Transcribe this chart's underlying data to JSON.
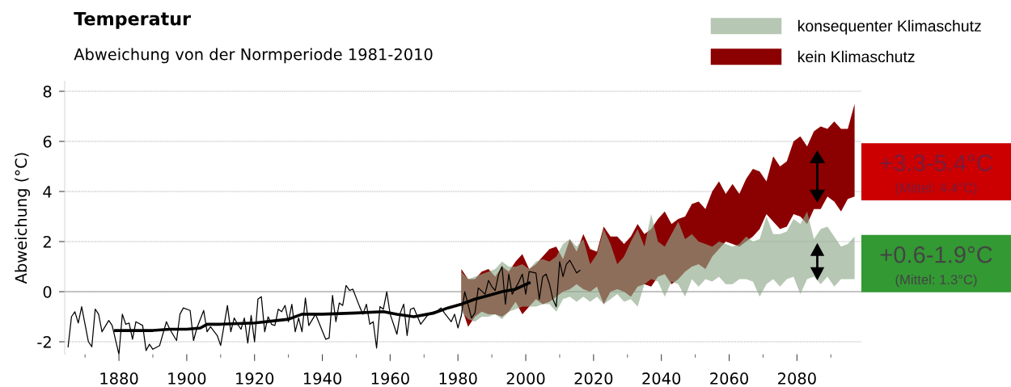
{
  "chart_data": {
    "type": "line",
    "title": "Temperatur",
    "subtitle": "Abweichung von der Normperiode 1981-2010",
    "ylabel": "Abweichung (°C)",
    "xlim": [
      1864,
      2099
    ],
    "ylim": [
      -2.5,
      8.4
    ],
    "xticks": [
      {
        "value": 1870,
        "label": null
      },
      1880,
      {
        "value": 1890,
        "label": null
      },
      1900,
      {
        "value": 1910,
        "label": null
      },
      1920,
      {
        "value": 1930,
        "label": null
      },
      1940,
      {
        "value": 1950,
        "label": null
      },
      1960,
      {
        "value": 1970,
        "label": null
      },
      1980,
      {
        "value": 1990,
        "label": null
      },
      2000,
      {
        "value": 2010,
        "label": null
      },
      2020,
      {
        "value": 2030,
        "label": null
      },
      2040,
      {
        "value": 2050,
        "label": null
      },
      2060,
      {
        "value": 2070,
        "label": null
      },
      2080,
      {
        "value": 2090,
        "label": null
      }
    ],
    "yticks": [
      -2,
      0,
      2,
      4,
      6,
      8
    ],
    "grid": "y",
    "legend": "top right",
    "series": [
      {
        "type": "line",
        "name": "konsequenter Klimaschutz",
        "color": "#8fa98a",
        "x": [
          1981,
          1983,
          1985,
          1987,
          1989,
          1991,
          1993,
          1995,
          1997,
          1999,
          2001,
          2003,
          2005,
          2007,
          2009,
          2011,
          2013,
          2015,
          2017,
          2019,
          2021,
          2023,
          2025,
          2027,
          2029,
          2031,
          2033,
          2035,
          2037,
          2039,
          2041,
          2043,
          2045,
          2047,
          2049,
          2051,
          2053,
          2055,
          2057,
          2059,
          2061,
          2063,
          2065,
          2067,
          2069,
          2071,
          2073,
          2075,
          2077,
          2079,
          2081,
          2083,
          2085,
          2087,
          2089,
          2091,
          2093,
          2095,
          2097
        ],
        "values": [
          null,
          null,
          null,
          null,
          null,
          null,
          null,
          null,
          null,
          null,
          null,
          null,
          null,
          null,
          null,
          null,
          null,
          null,
          null,
          null,
          null,
          null,
          null,
          null,
          null,
          null,
          null,
          null,
          null,
          null,
          null,
          null,
          null,
          null,
          null,
          null,
          null,
          null,
          null,
          null,
          null,
          null,
          null,
          null,
          null,
          null,
          null,
          null,
          null,
          null,
          null,
          null,
          null,
          null,
          null,
          null,
          null,
          null,
          null
        ],
        "upper": [
          0.8,
          0.5,
          0.6,
          0.7,
          0.8,
          0.9,
          1.2,
          1.0,
          1.0,
          1.1,
          0.9,
          1.2,
          1.3,
          1.2,
          1.4,
          1.9,
          2.1,
          1.8,
          2.1,
          1.1,
          1.5,
          2.5,
          1.9,
          1.1,
          1.4,
          2.0,
          2.5,
          1.8,
          3.1,
          2.0,
          1.8,
          2.3,
          2.8,
          2.1,
          2.3,
          2.0,
          1.9,
          1.8,
          2.0,
          1.9,
          1.8,
          1.9,
          2.2,
          2.0,
          2.1,
          3.0,
          2.3,
          2.3,
          2.4,
          2.9,
          2.7,
          3.2,
          2.1,
          2.5,
          2.6,
          2.2,
          1.8,
          1.9,
          2.2
        ],
        "lower": [
          -0.8,
          -1.1,
          -1.2,
          -1.0,
          -1.0,
          -0.9,
          -1.1,
          -0.8,
          -0.7,
          -0.6,
          -0.6,
          -0.6,
          -0.5,
          -0.5,
          -0.8,
          -0.3,
          -0.2,
          -0.4,
          -0.2,
          -0.4,
          -0.2,
          -0.5,
          -0.3,
          -0.1,
          -0.4,
          -0.3,
          -0.6,
          0.3,
          0.5,
          0.4,
          -0.2,
          0.4,
          0.3,
          -0.2,
          0.5,
          0.2,
          0.5,
          0.4,
          0.6,
          0.3,
          0.3,
          0.5,
          0.5,
          0.4,
          -0.2,
          0.3,
          0.5,
          0.2,
          0.5,
          0.6,
          -0.1,
          0.5,
          0.6,
          0.3,
          0.6,
          0.2,
          0.5,
          0.5,
          0.5
        ]
      },
      {
        "type": "line",
        "name": "kein Klimaschutz",
        "color": "#8b0000",
        "x": [
          1981,
          1983,
          1985,
          1987,
          1989,
          1991,
          1993,
          1995,
          1997,
          1999,
          2001,
          2003,
          2005,
          2007,
          2009,
          2011,
          2013,
          2015,
          2017,
          2019,
          2021,
          2023,
          2025,
          2027,
          2029,
          2031,
          2033,
          2035,
          2037,
          2039,
          2041,
          2043,
          2045,
          2047,
          2049,
          2051,
          2053,
          2055,
          2057,
          2059,
          2061,
          2063,
          2065,
          2067,
          2069,
          2071,
          2073,
          2075,
          2077,
          2079,
          2081,
          2083,
          2085,
          2087,
          2089,
          2091,
          2093,
          2095,
          2097
        ],
        "values": [
          null,
          null,
          null,
          null,
          null,
          null,
          null,
          null,
          null,
          null,
          null,
          null,
          null,
          null,
          null,
          null,
          null,
          null,
          null,
          null,
          null,
          null,
          null,
          null,
          null,
          null,
          null,
          null,
          null,
          null,
          null,
          null,
          null,
          null,
          null,
          null,
          null,
          null,
          null,
          null,
          null,
          null,
          null,
          null,
          null,
          null,
          null,
          null,
          null,
          null,
          null,
          null,
          null,
          null,
          null,
          null,
          null,
          null,
          null
        ],
        "upper": [
          0.9,
          0.5,
          0.5,
          0.8,
          0.9,
          0.6,
          1.0,
          0.8,
          1.2,
          1.5,
          0.9,
          1.1,
          1.4,
          1.7,
          1.8,
          1.3,
          2.1,
          1.6,
          2.3,
          1.7,
          1.6,
          2.6,
          2.2,
          2.2,
          1.9,
          2.2,
          2.7,
          2.3,
          2.5,
          2.9,
          3.2,
          2.7,
          2.9,
          3.0,
          3.5,
          3.6,
          3.3,
          4.0,
          4.4,
          3.9,
          4.3,
          3.9,
          4.5,
          4.9,
          4.8,
          4.4,
          5.4,
          5.0,
          5.2,
          6.0,
          6.2,
          5.8,
          6.4,
          6.6,
          6.5,
          6.8,
          6.5,
          6.5,
          7.5
        ],
        "lower": [
          -0.6,
          -1.4,
          -1.0,
          -0.8,
          -0.9,
          -0.9,
          -1.0,
          -0.8,
          -0.4,
          -0.9,
          -0.6,
          -0.3,
          -0.5,
          -0.4,
          -0.2,
          0.0,
          0.1,
          0.3,
          0.1,
          0.0,
          0.2,
          -0.5,
          0.0,
          0.1,
          0.0,
          -0.2,
          0.2,
          0.3,
          0.2,
          0.6,
          0.7,
          0.3,
          0.5,
          0.8,
          1.0,
          1.1,
          0.9,
          1.4,
          1.7,
          2.0,
          1.9,
          1.8,
          2.0,
          2.2,
          2.5,
          3.1,
          2.8,
          2.5,
          2.6,
          3.1,
          3.0,
          2.7,
          3.3,
          3.3,
          3.8,
          3.6,
          3.2,
          3.7,
          3.8
        ]
      },
      {
        "type": "line",
        "color": "#000000",
        "x": [
          1865,
          1866,
          1867,
          1868,
          1869,
          1871,
          1872,
          1873,
          1874,
          1875,
          1877,
          1878,
          1880,
          1881,
          1882,
          1883,
          1884,
          1885,
          1887,
          1888,
          1889,
          1890,
          1892,
          1894,
          1895,
          1897,
          1898,
          1899,
          1901,
          1902,
          1903,
          1905,
          1906,
          1907,
          1909,
          1910,
          1912,
          1913,
          1914,
          1915,
          1916,
          1917,
          1918,
          1919,
          1920,
          1921,
          1922,
          1923,
          1924,
          1925,
          1926,
          1927,
          1928,
          1929,
          1930,
          1931,
          1932,
          1933,
          1934,
          1935,
          1936,
          1938,
          1941,
          1942,
          1943,
          1944,
          1945,
          1946,
          1947,
          1948,
          1949,
          1951,
          1952,
          1953,
          1954,
          1955,
          1956,
          1957,
          1958,
          1959,
          1960,
          1962,
          1963,
          1964,
          1965,
          1966,
          1967,
          1969,
          1971,
          1972,
          1974,
          1975,
          1976,
          1978,
          1979,
          1980,
          1981,
          1982,
          1984,
          1985,
          1986,
          1988,
          1989,
          1990,
          1991,
          1992,
          1993,
          1994,
          1995,
          1996,
          1998,
          1999,
          2000,
          2001,
          2003,
          2004,
          2005,
          2006,
          2007,
          2008,
          2009,
          2010,
          2011,
          2012,
          2013,
          2015,
          2016
        ],
        "values": [
          -2.2,
          -1.0,
          -0.8,
          -1.25,
          -0.6,
          -2.0,
          -2.2,
          -0.7,
          -0.9,
          -1.6,
          -1.15,
          -1.35,
          -2.5,
          -0.9,
          -1.3,
          -1.25,
          -1.9,
          -1.2,
          -1.35,
          -2.35,
          -2.1,
          -2.3,
          -2.15,
          -1.2,
          -1.5,
          -1.95,
          -0.9,
          -0.65,
          -0.75,
          -1.95,
          -1.45,
          -0.75,
          -1.6,
          -1.4,
          -1.75,
          -2.15,
          -0.55,
          -1.6,
          -1.05,
          -1.3,
          -1.5,
          -1.05,
          -2.05,
          -0.95,
          -2.0,
          -0.3,
          -0.2,
          -1.6,
          -1.0,
          -1.3,
          -1.35,
          -0.7,
          -0.8,
          -0.55,
          -1.2,
          -0.5,
          -1.6,
          -1.05,
          -1.6,
          -0.25,
          -1.35,
          -0.9,
          -1.9,
          -1.85,
          -0.15,
          -1.2,
          -0.45,
          -0.55,
          0.25,
          0.05,
          0.1,
          -0.6,
          -0.9,
          -0.5,
          -1.3,
          -1.2,
          -2.25,
          -0.6,
          -0.7,
          0.0,
          -0.9,
          -1.7,
          -0.85,
          -0.5,
          -1.75,
          -0.7,
          -0.65,
          -1.3,
          -0.95,
          -0.85,
          -0.75,
          -0.65,
          -0.85,
          -1.2,
          -0.9,
          -1.45,
          -0.95,
          0.0,
          -1.05,
          -0.85,
          0.15,
          -0.1,
          0.45,
          0.2,
          0.05,
          0.7,
          1.0,
          -0.5,
          0.7,
          -0.1,
          0.4,
          0.7,
          -0.1,
          0.8,
          0.75,
          -0.3,
          0.6,
          0.7,
          0.3,
          -0.3,
          -0.6,
          1.2,
          0.6,
          1.1,
          1.25,
          0.75,
          0.85
        ]
      },
      {
        "type": "line",
        "color": "#000000",
        "x": [
          1879,
          1885,
          1890,
          1895,
          1900,
          1904,
          1906,
          1910,
          1920,
          1930,
          1934,
          1940,
          1950,
          1958,
          1962,
          1967,
          1973,
          1977,
          1981,
          1985,
          1989,
          1993,
          1997,
          2001
        ],
        "values": [
          -1.55,
          -1.55,
          -1.55,
          -1.5,
          -1.5,
          -1.45,
          -1.3,
          -1.3,
          -1.25,
          -1.1,
          -0.9,
          -0.9,
          -0.85,
          -0.8,
          -0.9,
          -1.0,
          -0.85,
          -0.65,
          -0.5,
          -0.3,
          -0.15,
          0.0,
          0.1,
          0.35
        ]
      }
    ],
    "annotations": [
      "+3.3-5.4°C",
      "(Mittel: 4.4°C)",
      "+0.6-1.9°C",
      "(Mittel: 1.3°C)"
    ]
  }
}
